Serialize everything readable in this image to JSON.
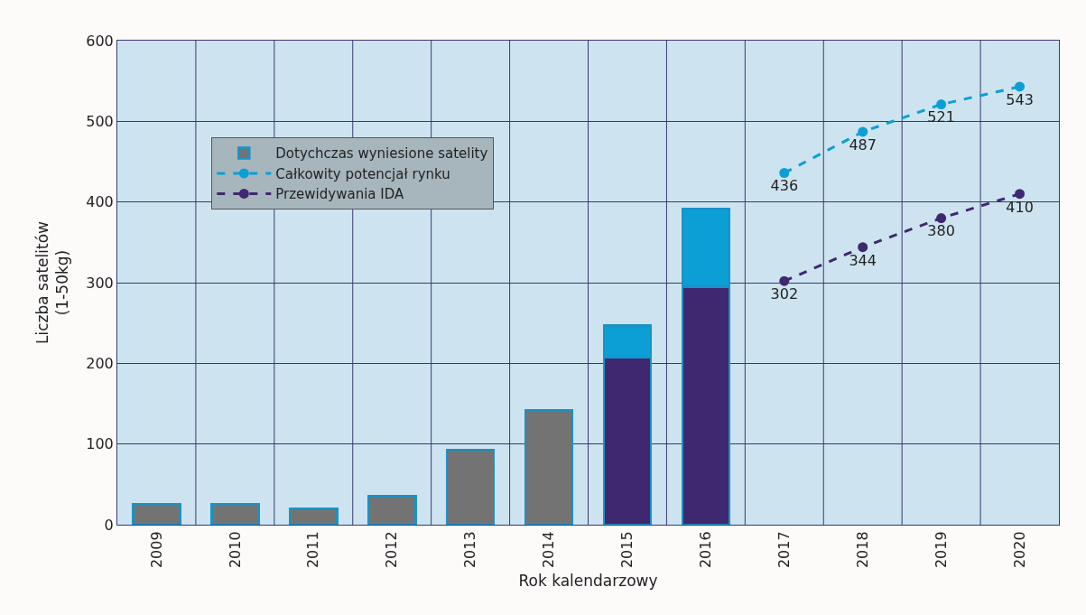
{
  "chart_data": {
    "type": "bar",
    "stacked": true,
    "xlabel": "Rok kalendarzowy",
    "ylabel": "Liczba satelitów\n(1-50kg)",
    "categories": [
      "2009",
      "2010",
      "2011",
      "2012",
      "2013",
      "2014",
      "2015",
      "2016",
      "2017",
      "2018",
      "2019",
      "2020"
    ],
    "series": [
      {
        "name": "Dotychczas wyniesione satelity",
        "colors": [
          "#737373",
          "#737373",
          "#737373",
          "#737373",
          "#737373",
          "#737373",
          "#3f2870",
          "#3f2870",
          null,
          null,
          null,
          null
        ],
        "values": [
          26,
          26,
          20,
          35,
          93,
          142,
          207,
          295,
          null,
          null,
          null,
          null
        ]
      },
      {
        "color": "#0b9fd6",
        "values": [
          null,
          null,
          null,
          null,
          null,
          null,
          40,
          97,
          null,
          null,
          null,
          null
        ]
      },
      {
        "name": "Całkowity potencjał rynku",
        "type": "line",
        "color": "#0b9fd6",
        "marker": "circle",
        "line_style": "dashed",
        "values": [
          null,
          null,
          null,
          null,
          null,
          null,
          null,
          null,
          436,
          487,
          521,
          543
        ],
        "value_labels": [
          null,
          null,
          null,
          null,
          null,
          null,
          null,
          null,
          "436",
          "487",
          "521",
          "543"
        ]
      },
      {
        "name": "Przewidywania IDA",
        "type": "line",
        "color": "#3f2870",
        "marker": "circle",
        "line_style": "dashed",
        "values": [
          null,
          null,
          null,
          null,
          null,
          null,
          null,
          null,
          302,
          344,
          380,
          410
        ],
        "value_labels": [
          null,
          null,
          null,
          null,
          null,
          null,
          null,
          null,
          "302",
          "344",
          "380",
          "410"
        ]
      }
    ],
    "ylim": [
      0,
      600
    ],
    "yticks": [
      0,
      100,
      200,
      300,
      400,
      500,
      600
    ],
    "grid": true,
    "legend": "top left"
  }
}
